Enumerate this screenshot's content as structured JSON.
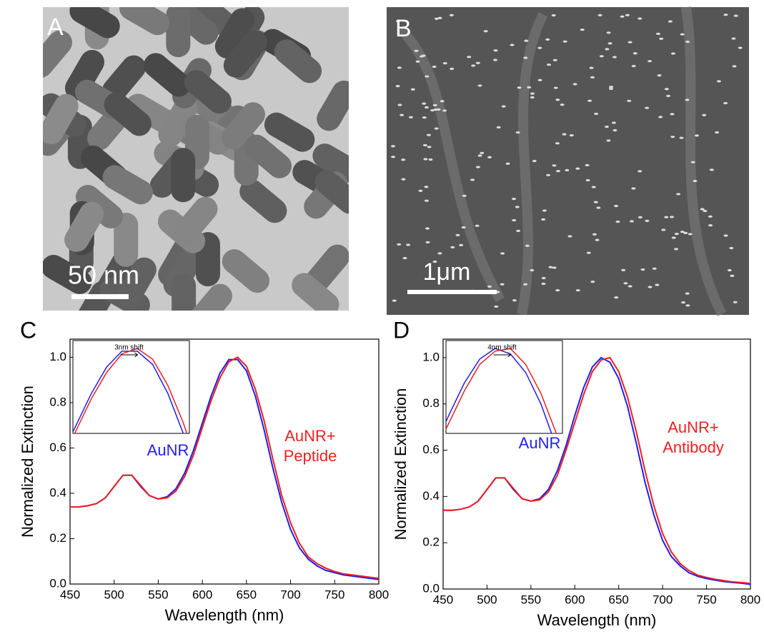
{
  "panels": [
    {
      "label": "A",
      "scale_bar": "50 nm"
    },
    {
      "label": "B",
      "scale_bar": "1μm"
    }
  ],
  "chart_data": [
    {
      "type": "line",
      "panel_label": "C",
      "xlabel": "Wavelength (nm)",
      "ylabel": "Normalized Extinction",
      "x": [
        450,
        460,
        470,
        480,
        490,
        500,
        510,
        520,
        530,
        540,
        550,
        560,
        570,
        580,
        590,
        600,
        610,
        620,
        630,
        640,
        650,
        660,
        670,
        680,
        690,
        700,
        710,
        720,
        730,
        740,
        750,
        760,
        770,
        780,
        790,
        800
      ],
      "series": [
        {
          "name": "AuNR",
          "color": "#1f1fef",
          "values": [
            0.34,
            0.34,
            0.345,
            0.355,
            0.38,
            0.43,
            0.48,
            0.48,
            0.43,
            0.39,
            0.375,
            0.385,
            0.42,
            0.49,
            0.59,
            0.71,
            0.83,
            0.93,
            0.99,
            0.99,
            0.94,
            0.83,
            0.68,
            0.51,
            0.36,
            0.24,
            0.16,
            0.11,
            0.08,
            0.06,
            0.05,
            0.04,
            0.035,
            0.03,
            0.025,
            0.02
          ]
        },
        {
          "name": "AuNR+ Peptide",
          "color": "#ef1f1f",
          "values": [
            0.34,
            0.34,
            0.345,
            0.355,
            0.38,
            0.43,
            0.48,
            0.48,
            0.435,
            0.39,
            0.375,
            0.38,
            0.41,
            0.475,
            0.57,
            0.69,
            0.81,
            0.91,
            0.98,
            1.0,
            0.96,
            0.86,
            0.72,
            0.55,
            0.39,
            0.27,
            0.18,
            0.12,
            0.09,
            0.07,
            0.055,
            0.045,
            0.04,
            0.035,
            0.03,
            0.025
          ]
        }
      ],
      "xlim": [
        450,
        800
      ],
      "ylim": [
        0,
        1.08
      ],
      "xticks": [
        450,
        500,
        550,
        600,
        650,
        700,
        750,
        800
      ],
      "yticks": [
        {
          "value": 0,
          "label": "0.0"
        },
        {
          "value": 0.2,
          "label": "0.2"
        },
        {
          "value": 0.4,
          "label": "0.4"
        },
        {
          "value": 0.6,
          "label": "0.6"
        },
        {
          "value": 0.8,
          "label": "0.8"
        },
        {
          "value": 1.0,
          "label": "1.0"
        }
      ],
      "inset": {
        "annotation": "3nm shift",
        "xlim": [
          598,
          674
        ],
        "ylim": [
          0.68,
          1.03
        ]
      }
    },
    {
      "type": "line",
      "panel_label": "D",
      "xlabel": "Wavelength (nm)",
      "ylabel": "Normalized Extinction",
      "x": [
        450,
        460,
        470,
        480,
        490,
        500,
        510,
        520,
        530,
        540,
        550,
        560,
        570,
        580,
        590,
        600,
        610,
        620,
        630,
        640,
        650,
        660,
        670,
        680,
        690,
        700,
        710,
        720,
        730,
        740,
        750,
        760,
        770,
        780,
        790,
        800
      ],
      "series": [
        {
          "name": "AuNR",
          "color": "#1f1fef",
          "values": [
            0.34,
            0.34,
            0.345,
            0.355,
            0.38,
            0.43,
            0.48,
            0.48,
            0.43,
            0.39,
            0.38,
            0.39,
            0.43,
            0.51,
            0.62,
            0.75,
            0.87,
            0.96,
            1.0,
            0.98,
            0.91,
            0.79,
            0.63,
            0.46,
            0.32,
            0.21,
            0.14,
            0.1,
            0.07,
            0.055,
            0.045,
            0.038,
            0.032,
            0.028,
            0.025,
            0.02
          ]
        },
        {
          "name": "AuNR+ Antibody",
          "color": "#ef1f1f",
          "values": [
            0.34,
            0.34,
            0.345,
            0.355,
            0.38,
            0.43,
            0.48,
            0.48,
            0.435,
            0.39,
            0.38,
            0.385,
            0.42,
            0.49,
            0.6,
            0.72,
            0.84,
            0.94,
            0.99,
            1.0,
            0.94,
            0.83,
            0.68,
            0.51,
            0.36,
            0.24,
            0.16,
            0.11,
            0.08,
            0.06,
            0.05,
            0.042,
            0.036,
            0.031,
            0.028,
            0.024
          ]
        }
      ],
      "xlim": [
        450,
        800
      ],
      "ylim": [
        0,
        1.08
      ],
      "xticks": [
        450,
        500,
        550,
        600,
        650,
        700,
        750,
        800
      ],
      "yticks": [
        {
          "value": 0,
          "label": "0.0"
        },
        {
          "value": 0.2,
          "label": "0.2"
        },
        {
          "value": 0.4,
          "label": "0.4"
        },
        {
          "value": 0.6,
          "label": "0.6"
        },
        {
          "value": 0.8,
          "label": "0.8"
        },
        {
          "value": 1.0,
          "label": "1.0"
        }
      ],
      "inset": {
        "annotation": "4nm shift",
        "xlim": [
          598,
          674
        ],
        "ylim": [
          0.68,
          1.03
        ]
      }
    }
  ]
}
